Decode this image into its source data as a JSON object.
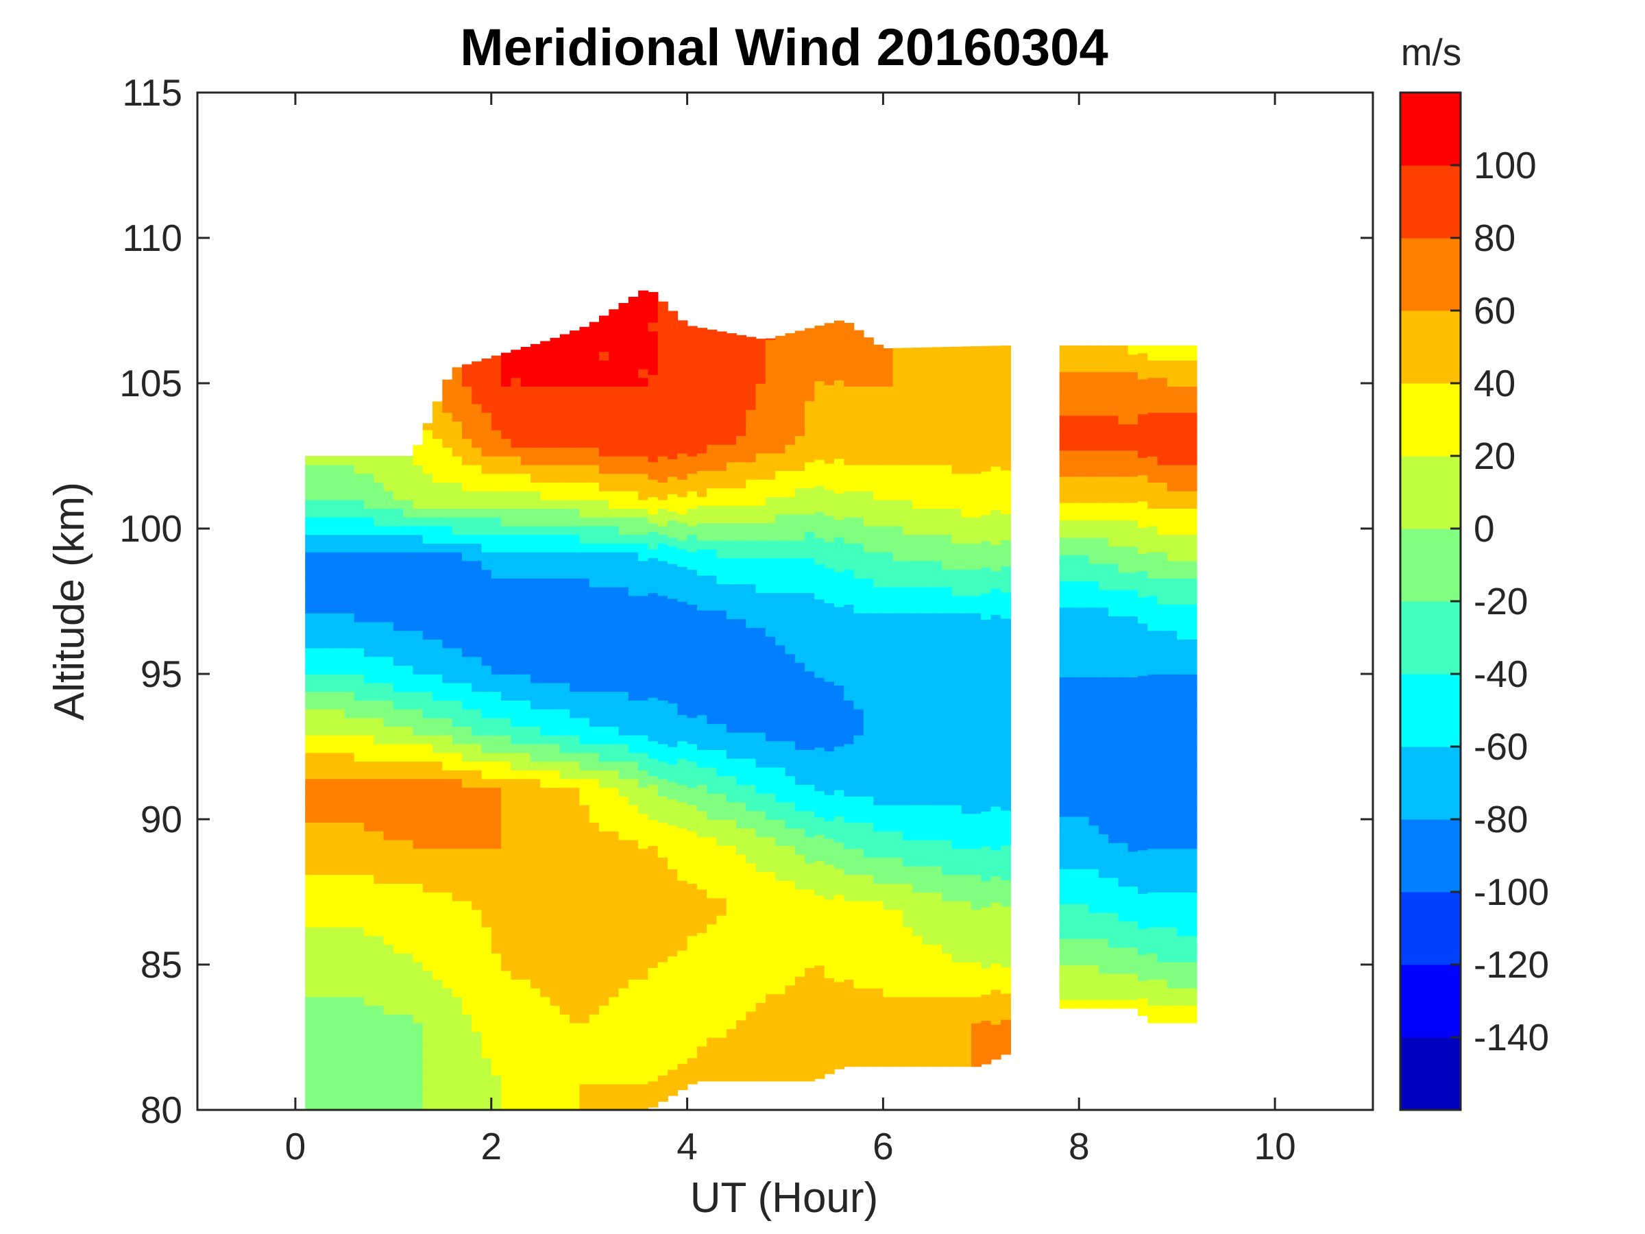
{
  "chart_data": {
    "type": "heatmap",
    "subtype": "filled-contour",
    "title": "Meridional Wind 20160304",
    "xlabel": "UT (Hour)",
    "ylabel": "Altitude (km)",
    "xlim": [
      -1,
      11
    ],
    "ylim": [
      80,
      115
    ],
    "xticks": [
      "0",
      "2",
      "4",
      "6",
      "8",
      "10"
    ],
    "yticks": [
      "80",
      "85",
      "90",
      "95",
      "100",
      "105",
      "110",
      "115"
    ],
    "colorbar": {
      "label": "m/s",
      "range": [
        -160,
        120
      ],
      "ticks": [
        "-140",
        "-120",
        "-100",
        "-80",
        "-60",
        "-40",
        "-20",
        "0",
        "20",
        "40",
        "60",
        "80",
        "100"
      ],
      "levels": [
        -160,
        -140,
        -120,
        -100,
        -80,
        -60,
        -40,
        -20,
        0,
        20,
        40,
        60,
        80,
        100,
        120
      ],
      "colors": [
        "#0000BF",
        "#0000FF",
        "#0040FF",
        "#0080FF",
        "#00BFFF",
        "#00FFFF",
        "#40FFBF",
        "#80FF80",
        "#BFFF40",
        "#FFFF00",
        "#FFBF00",
        "#FF8000",
        "#FF4000",
        "#FF0000"
      ]
    },
    "altitudes_km": [
      81,
      83,
      85,
      87,
      89,
      91,
      93,
      95,
      97,
      99,
      101,
      103,
      105,
      107
    ],
    "blocks": [
      {
        "ut_hours": [
          0.5,
          1.3,
          2.1,
          2.9,
          3.7,
          4.5,
          5.3,
          6.1,
          6.9
        ],
        "ut_range": [
          0.1,
          7.3
        ],
        "top_km": [
          [
            0.1,
            102.5
          ],
          [
            1.2,
            102.5
          ],
          [
            1.6,
            105.5
          ],
          [
            2.6,
            106.5
          ],
          [
            3.0,
            107
          ],
          [
            3.6,
            108.3
          ],
          [
            4.0,
            107
          ],
          [
            4.8,
            106.5
          ],
          [
            5.6,
            107.2
          ],
          [
            6.0,
            106.2
          ],
          [
            7.3,
            106.3
          ]
        ],
        "bottom_km": [
          [
            0.1,
            80
          ],
          [
            3.6,
            80
          ],
          [
            4.1,
            81
          ],
          [
            5.3,
            81
          ],
          [
            5.6,
            81.5
          ],
          [
            7.0,
            81.5
          ],
          [
            7.3,
            82
          ]
        ],
        "values": [
          [
            -20,
            0,
            20,
            40,
            40,
            50,
            50,
            60,
            60
          ],
          [
            -10,
            0,
            30,
            40,
            30,
            40,
            50,
            50,
            60
          ],
          [
            10,
            20,
            40,
            50,
            40,
            30,
            40,
            30,
            20
          ],
          [
            25,
            30,
            45,
            50,
            50,
            40,
            30,
            20,
            0
          ],
          [
            50,
            60,
            60,
            50,
            40,
            20,
            -10,
            -30,
            -40
          ],
          [
            70,
            80,
            60,
            40,
            0,
            -30,
            -60,
            -70,
            -70
          ],
          [
            20,
            0,
            -30,
            -50,
            -70,
            -80,
            -90,
            -75,
            -80
          ],
          [
            -40,
            -60,
            -80,
            -90,
            -90,
            -95,
            -80,
            -75,
            -80
          ],
          [
            -80,
            -90,
            -100,
            -95,
            -90,
            -80,
            -70,
            -60,
            -60
          ],
          [
            -90,
            -95,
            -70,
            -70,
            -60,
            -40,
            -40,
            -20,
            -10
          ],
          [
            -20,
            10,
            10,
            20,
            40,
            30,
            10,
            20,
            30
          ],
          [
            10,
            30,
            80,
            90,
            100,
            80,
            55,
            55,
            50
          ],
          [
            10,
            60,
            100,
            100,
            100,
            90,
            60,
            60,
            50
          ],
          [
            10,
            60,
            100,
            100,
            100,
            90,
            70,
            60,
            55
          ]
        ]
      },
      {
        "ut_hours": [
          8.03,
          8.5,
          8.97
        ],
        "ut_range": [
          7.8,
          9.2
        ],
        "top_km": [
          [
            7.8,
            106.3
          ],
          [
            9.2,
            106.3
          ]
        ],
        "bottom_km": [
          [
            7.8,
            83.5
          ],
          [
            8.6,
            83.5
          ],
          [
            8.7,
            83
          ],
          [
            9.2,
            83
          ]
        ],
        "values": [
          [
            30,
            40,
            40
          ],
          [
            30,
            40,
            40
          ],
          [
            0,
            -10,
            -20
          ],
          [
            -40,
            -50,
            -55
          ],
          [
            -70,
            -80,
            -80
          ],
          [
            -90,
            -100,
            -90
          ],
          [
            -85,
            -95,
            -90
          ],
          [
            -80,
            -80,
            -80
          ],
          [
            -70,
            -60,
            -50
          ],
          [
            -20,
            -10,
            0
          ],
          [
            40,
            40,
            50
          ],
          [
            90,
            85,
            100
          ],
          [
            70,
            70,
            60
          ],
          [
            30,
            20,
            0
          ]
        ]
      }
    ]
  }
}
